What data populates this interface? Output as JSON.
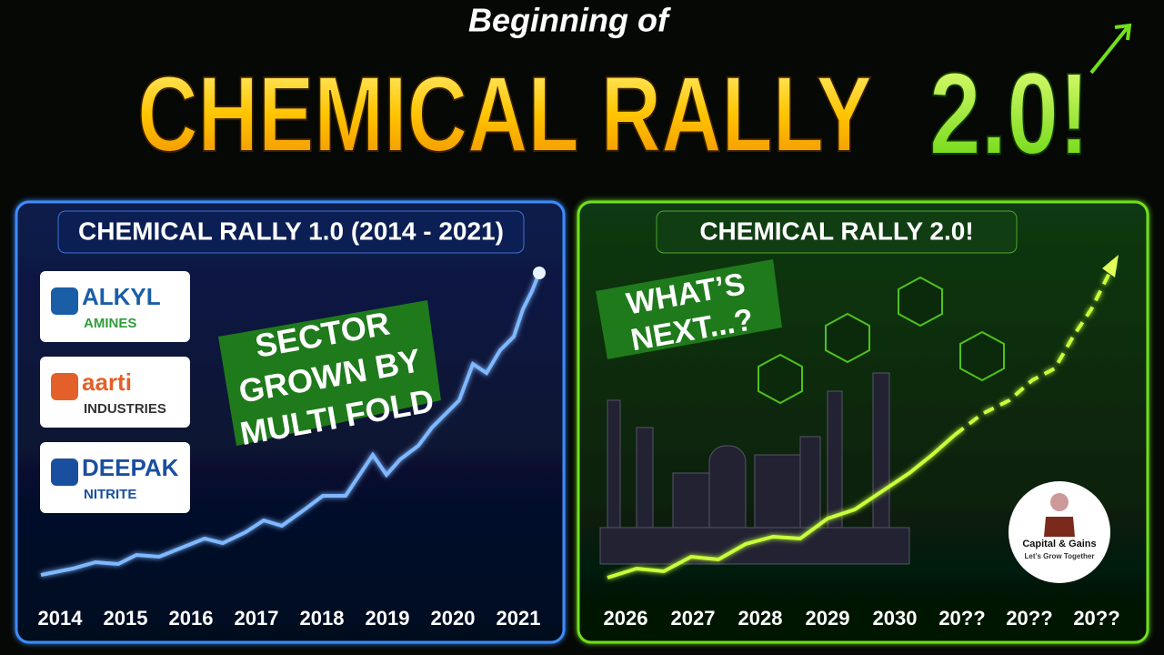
{
  "header": {
    "kicker": "Beginning of",
    "title": "CHEMICAL RALLY",
    "title_accent": "2.0!"
  },
  "left_panel": {
    "title": "CHEMICAL RALLY 1.0 (2014 - 2021)",
    "callout": [
      "SECTOR",
      "GROWN BY",
      "MULTI FOLD"
    ],
    "logos": [
      {
        "name": "ALKYL",
        "sub": "AMINES"
      },
      {
        "name": "aarti",
        "sub": "INDUSTRIES"
      },
      {
        "name": "DEEPAK",
        "sub": "NITRITE"
      }
    ],
    "years": [
      "2014",
      "2015",
      "2016",
      "2017",
      "2018",
      "2019",
      "2020",
      "2021"
    ]
  },
  "right_panel": {
    "title": "CHEMICAL RALLY 2.0!",
    "callout": [
      "WHAT’S",
      "NEXT...?"
    ],
    "years": [
      "2026",
      "2027",
      "2028",
      "2029",
      "2030",
      "20??",
      "20??",
      "20??"
    ],
    "badge": {
      "name": "Capital & Gains",
      "tagline": "Let’s Grow Together"
    }
  }
}
